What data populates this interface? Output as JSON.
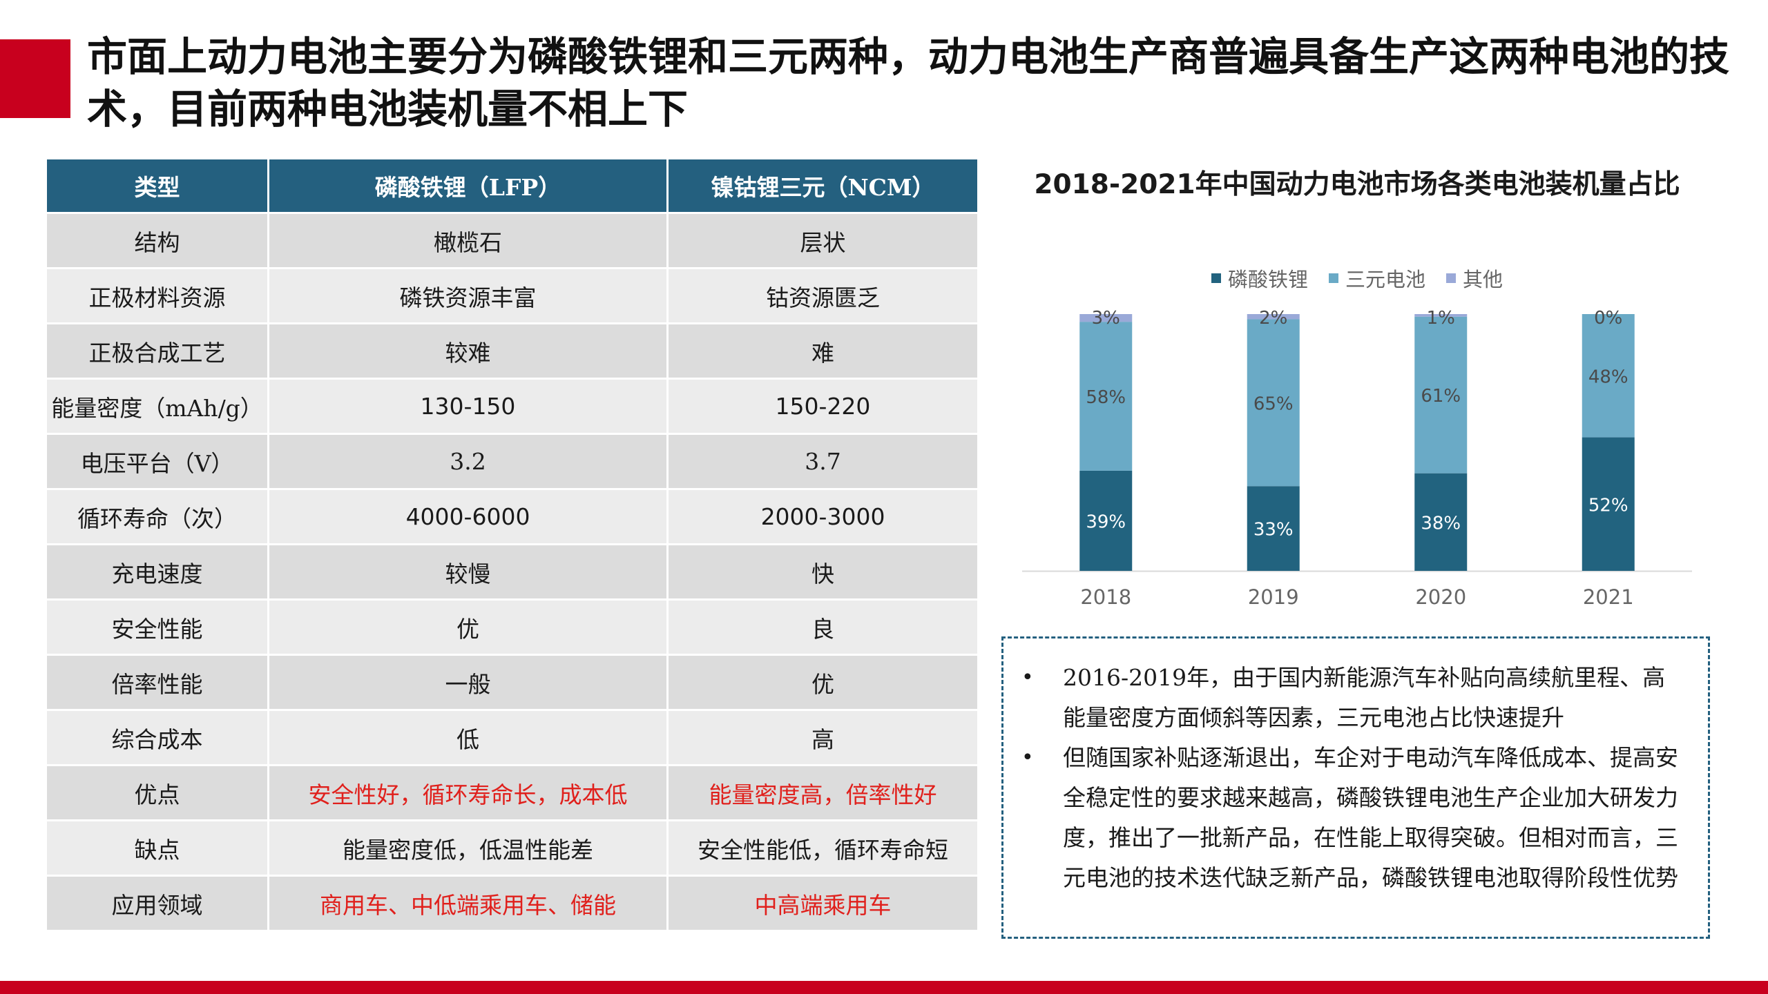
{
  "title": "市面上动力电池主要分为磷酸铁锂和三元两种，动力电池生产商普遍具备生产这两种电池的技术，目前两种电池装机量不相上下",
  "table": {
    "headers": [
      "类型",
      "磷酸铁锂（LFP）",
      "镍钴锂三元（NCM）"
    ],
    "rows": [
      [
        "结构",
        "橄榄石",
        "层状"
      ],
      [
        "正极材料资源",
        "磷铁资源丰富",
        "钴资源匮乏"
      ],
      [
        "正极合成工艺",
        "较难",
        "难"
      ],
      [
        "能量密度（mAh/g）",
        "130-150",
        "150-220"
      ],
      [
        "电压平台（V）",
        "3.2",
        "3.7"
      ],
      [
        "循环寿命（次）",
        "4000-6000",
        "2000-3000"
      ],
      [
        "充电速度",
        "较慢",
        "快"
      ],
      [
        "安全性能",
        "优",
        "良"
      ],
      [
        "倍率性能",
        "一般",
        "优"
      ],
      [
        "综合成本",
        "低",
        "高"
      ],
      [
        "优点",
        "安全性好，循环寿命长，成本低",
        "能量密度高，倍率性好"
      ],
      [
        "缺点",
        "能量密度低，低温性能差",
        "安全性能低，循环寿命短"
      ],
      [
        "应用领域",
        "商用车、中低端乘用车、储能",
        "中高端乘用车"
      ]
    ]
  },
  "chart_data": {
    "type": "bar",
    "stacked": true,
    "title": "2018-2021年中国动力电池市场各类电池装机量占比",
    "categories": [
      "2018",
      "2019",
      "2020",
      "2021"
    ],
    "series": [
      {
        "name": "磷酸铁锂",
        "values": [
          39,
          33,
          38,
          52
        ],
        "labels": [
          "39%",
          "33%",
          "38%",
          "52%"
        ],
        "color": "#22637f"
      },
      {
        "name": "三元电池",
        "values": [
          58,
          65,
          61,
          48
        ],
        "labels": [
          "58%",
          "65%",
          "61%",
          "48%"
        ],
        "color": "#6aaac6"
      },
      {
        "name": "其他",
        "values": [
          3,
          2,
          1,
          0
        ],
        "labels": [
          "3%",
          "2%",
          "1%",
          "0%"
        ],
        "color": "#9aa9d8"
      }
    ],
    "ylim": [
      0,
      100
    ],
    "grid": false,
    "legend": "top"
  },
  "notes": [
    "2016-2019年，由于国内新能源汽车补贴向高续航里程、高能量密度方面倾斜等因素，三元电池占比快速提升",
    "但随国家补贴逐渐退出，车企对于电动汽车降低成本、提高安全稳定性的要求越来越高，磷酸铁锂电池生产企业加大研发力度，推出了一批新产品，在性能上取得突破。但相对而言，三元电池的技术迭代缺乏新产品，磷酸铁锂电池取得阶段性优势"
  ],
  "colors": {
    "accent": "#c8001e",
    "header": "#24607f",
    "highlight_text": "#e0201c"
  }
}
